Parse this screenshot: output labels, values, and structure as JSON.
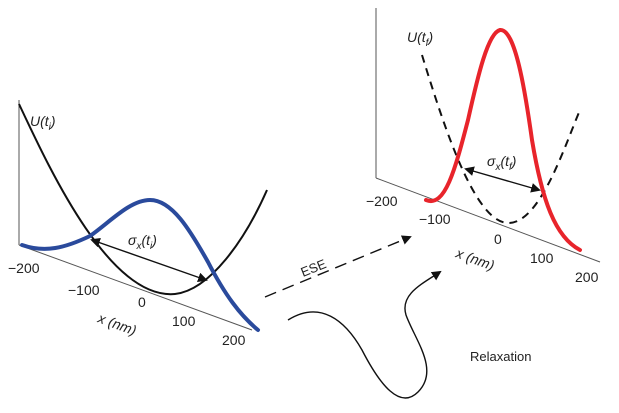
{
  "colors": {
    "axis": "#555555",
    "potential": "#111111",
    "initial_wavepacket": "#2a4a9c",
    "final_wavepacket": "#e8242b",
    "arrows": "#111111"
  },
  "left_panel": {
    "potential_label": {
      "main": "U(t",
      "sub": "i",
      "close": ")"
    },
    "width_label": {
      "main": "σ",
      "sub_x": "x",
      "mid": "(t",
      "sub_i": "i",
      "close": ")"
    },
    "x_axis_label": "x (nm)",
    "x_ticks": [
      "−200",
      "−100",
      "0",
      "100",
      "200"
    ]
  },
  "right_panel": {
    "potential_label": {
      "main": "U(t",
      "sub": "f",
      "close": ")"
    },
    "width_label": {
      "main": "σ",
      "sub_x": "x",
      "mid": "(t",
      "sub_f": "f",
      "close": ")"
    },
    "x_axis_label": "x (nm)",
    "x_ticks": [
      "−200",
      "−100",
      "0",
      "100",
      "200"
    ]
  },
  "transitions": {
    "ese_label": "ESE",
    "relaxation_label": "Relaxation"
  }
}
